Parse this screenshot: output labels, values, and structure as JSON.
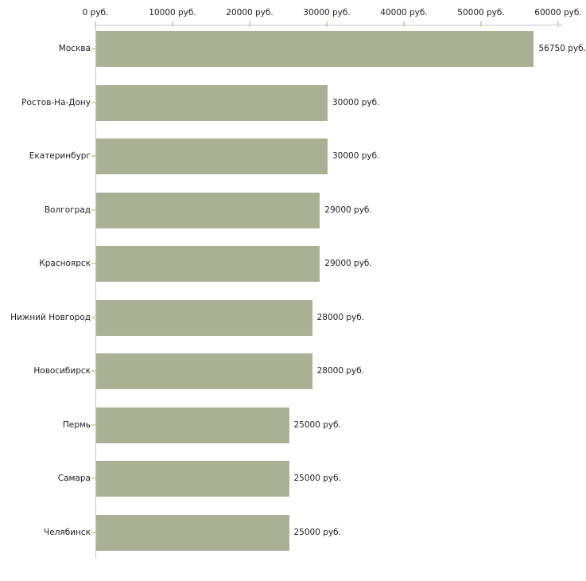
{
  "chart_data": {
    "type": "bar",
    "orientation": "horizontal",
    "title": "",
    "xlabel": "",
    "ylabel": "",
    "grid": false,
    "legend": false,
    "axis_position": "top",
    "categories": [
      "Москва",
      "Ростов-На-Дону",
      "Екатеринбург",
      "Волгоград",
      "Красноярск",
      "Нижний Новгород",
      "Новосибирск",
      "Пермь",
      "Самара",
      "Челябинск"
    ],
    "values": [
      56750,
      30000,
      30000,
      29000,
      29000,
      28000,
      28000,
      25000,
      25000,
      25000
    ],
    "value_labels": [
      "56750 руб.",
      "30000 руб.",
      "30000 руб.",
      "29000 руб.",
      "29000 руб.",
      "28000 руб.",
      "28000 руб.",
      "25000 руб.",
      "25000 руб.",
      "25000 руб."
    ],
    "x_ticks": [
      0,
      10000,
      20000,
      30000,
      40000,
      50000,
      60000
    ],
    "x_tick_labels": [
      "0 руб.",
      "10000 руб.",
      "20000 руб.",
      "30000 руб.",
      "40000 руб.",
      "50000 руб.",
      "60000 руб."
    ],
    "xlim": [
      0,
      60000
    ],
    "colors": {
      "bar": "#aab094",
      "axis_line": "#c6c6c6",
      "tick_mark": "#d6d6ae",
      "text": "#1e1e1e",
      "background": "#ffffff"
    }
  }
}
